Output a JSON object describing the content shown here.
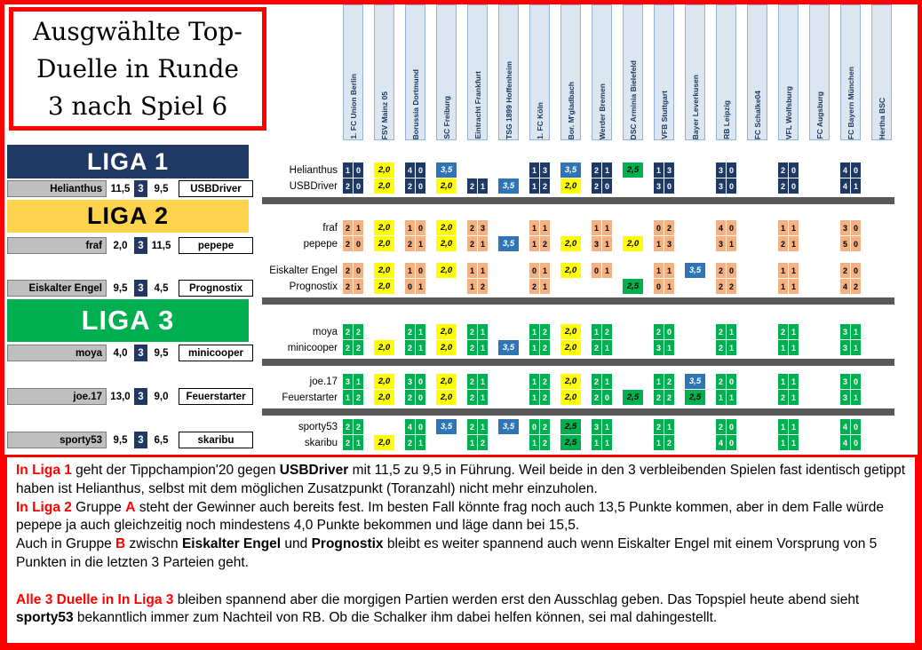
{
  "title": "Ausgwählte Top-\nDuelle in Runde\n3 nach Spiel 6",
  "leagues": {
    "liga1": {
      "label": "LIGA 1",
      "banner_bg": "#1F3864",
      "banner_fg": "#FFFFFF"
    },
    "liga2": {
      "label": "LIGA 2",
      "banner_bg": "#FFD34D",
      "banner_fg": "#000000"
    },
    "liga3": {
      "label": "LIGA 3",
      "banner_bg": "#00B050",
      "banner_fg": "#FFFFFF"
    }
  },
  "league_cell_colors": {
    "1": {
      "bg": "#1F3864",
      "fg": "#FFFFFF"
    },
    "2": {
      "bg": "#F4B183",
      "fg": "#000000"
    },
    "3": {
      "bg": "#00B050",
      "fg": "#FFFFFF"
    }
  },
  "points_colors": {
    "y": {
      "bg": "#FFFF00",
      "fg": "#000000"
    },
    "b": {
      "bg": "#2E75B6",
      "fg": "#FFFFFF"
    },
    "g": {
      "bg": "#00B050",
      "fg": "#000000"
    }
  },
  "teams": [
    "1. FC Union Berlin",
    "FSV Mainz 05",
    "Borussia Dortmund",
    "SC Freiburg",
    "Eintracht Frankfurt",
    "TSG 1899 Hoffenheim",
    "1. FC Köln",
    "Bor. M'gladbach",
    "Werder Bremen",
    "DSC Arminia Bielefeld",
    "VFB Stuttgart",
    "Bayer Leverkusen",
    "RB Leipzig",
    "FC Schalke04",
    "VFL Wolfsburg",
    "FC Augsburg",
    "FC Bayern München",
    "Hertha BSC"
  ],
  "matchups": [
    {
      "home": "Helianthus",
      "home_score": "11,5",
      "round": "3",
      "away_score": "9,5",
      "away": "USBDriver"
    },
    {
      "home": "fraf",
      "home_score": "2,0",
      "round": "3",
      "away_score": "11,5",
      "away": "pepepe"
    },
    {
      "home": "Eiskalter Engel",
      "home_score": "9,5",
      "round": "3",
      "away_score": "4,5",
      "away": "Prognostix"
    },
    {
      "home": "moya",
      "home_score": "4,0",
      "round": "3",
      "away_score": "9,5",
      "away": "minicooper"
    },
    {
      "home": "joe.17",
      "home_score": "13,0",
      "round": "3",
      "away_score": "9,0",
      "away": "Feuerstarter"
    },
    {
      "home": "sporty53",
      "home_score": "9,5",
      "round": "3",
      "away_score": "6,5",
      "away": "skaribu"
    }
  ],
  "grid": {
    "rows": [
      {
        "player": "Helianthus",
        "league": "1",
        "cells": [
          {
            "s": "1:0"
          },
          {
            "p": "2,0",
            "c": "y"
          },
          {
            "s": "4:0"
          },
          {
            "p": "3,5",
            "c": "b"
          },
          null,
          null,
          {
            "s": "1:3"
          },
          {
            "p": "3,5",
            "c": "b"
          },
          {
            "s": "2:1"
          },
          {
            "p": "2,5",
            "c": "g"
          },
          {
            "s": "1:3"
          },
          null,
          {
            "s": "3:0"
          },
          null,
          {
            "s": "2:0"
          },
          null,
          {
            "s": "4:0"
          },
          null
        ]
      },
      {
        "player": "USBDriver",
        "league": "1",
        "cells": [
          {
            "s": "2:0"
          },
          {
            "p": "2,0",
            "c": "y"
          },
          {
            "s": "2:0"
          },
          {
            "p": "2,0",
            "c": "y"
          },
          {
            "s": "2:1"
          },
          {
            "p": "3,5",
            "c": "b"
          },
          {
            "s": "1:2"
          },
          {
            "p": "2,0",
            "c": "y"
          },
          {
            "s": "2:0"
          },
          null,
          {
            "s": "3:0"
          },
          null,
          {
            "s": "3:0"
          },
          null,
          {
            "s": "2:0"
          },
          null,
          {
            "s": "4:1"
          },
          null
        ]
      },
      {
        "player": "fraf",
        "league": "2",
        "cells": [
          {
            "s": "2:1"
          },
          {
            "p": "2,0",
            "c": "y"
          },
          {
            "s": "1:0"
          },
          {
            "p": "2,0",
            "c": "y"
          },
          {
            "s": "2:3"
          },
          null,
          {
            "s": "1:1"
          },
          null,
          {
            "s": "1:1"
          },
          null,
          {
            "s": "0:2"
          },
          null,
          {
            "s": "4:0"
          },
          null,
          {
            "s": "1:1"
          },
          null,
          {
            "s": "3:0"
          },
          null
        ]
      },
      {
        "player": "pepepe",
        "league": "2",
        "cells": [
          {
            "s": "2:0"
          },
          {
            "p": "2,0",
            "c": "y"
          },
          {
            "s": "2:1"
          },
          {
            "p": "2,0",
            "c": "y"
          },
          {
            "s": "2:1"
          },
          {
            "p": "3,5",
            "c": "b"
          },
          {
            "s": "1:2"
          },
          {
            "p": "2,0",
            "c": "y"
          },
          {
            "s": "3:1"
          },
          {
            "p": "2,0",
            "c": "y"
          },
          {
            "s": "1:3"
          },
          null,
          {
            "s": "3:1"
          },
          null,
          {
            "s": "2:1"
          },
          null,
          {
            "s": "5:0"
          },
          null
        ]
      },
      {
        "player": "Eiskalter Engel",
        "league": "2",
        "cells": [
          {
            "s": "2:0"
          },
          {
            "p": "2,0",
            "c": "y"
          },
          {
            "s": "1:0"
          },
          {
            "p": "2,0",
            "c": "y"
          },
          {
            "s": "1:1"
          },
          null,
          {
            "s": "0:1"
          },
          {
            "p": "2,0",
            "c": "y"
          },
          {
            "s": "0:1"
          },
          null,
          {
            "s": "1:1"
          },
          {
            "p": "3,5",
            "c": "b"
          },
          {
            "s": "2:0"
          },
          null,
          {
            "s": "1:1"
          },
          null,
          {
            "s": "2:0"
          },
          null
        ]
      },
      {
        "player": "Prognostix",
        "league": "2",
        "cells": [
          {
            "s": "2:1"
          },
          {
            "p": "2,0",
            "c": "y"
          },
          {
            "s": "0:1"
          },
          null,
          {
            "s": "1:2"
          },
          null,
          {
            "s": "2:1"
          },
          null,
          null,
          {
            "p": "2,5",
            "c": "g"
          },
          {
            "s": "0:1"
          },
          null,
          {
            "s": "2:2"
          },
          null,
          {
            "s": "1:1"
          },
          null,
          {
            "s": "4:2"
          },
          null
        ]
      },
      {
        "player": "moya",
        "league": "3",
        "cells": [
          {
            "s": "2:2"
          },
          null,
          {
            "s": "2:1"
          },
          {
            "p": "2,0",
            "c": "y"
          },
          {
            "s": "2:1"
          },
          null,
          {
            "s": "1:2"
          },
          {
            "p": "2,0",
            "c": "y"
          },
          {
            "s": "1:2"
          },
          null,
          {
            "s": "2:0"
          },
          null,
          {
            "s": "2:1"
          },
          null,
          {
            "s": "2:1"
          },
          null,
          {
            "s": "3:1"
          },
          null
        ]
      },
      {
        "player": "minicooper",
        "league": "3",
        "cells": [
          {
            "s": "2:2"
          },
          {
            "p": "2,0",
            "c": "y"
          },
          {
            "s": "2:1"
          },
          {
            "p": "2,0",
            "c": "y"
          },
          {
            "s": "2:1"
          },
          {
            "p": "3,5",
            "c": "b"
          },
          {
            "s": "1:2"
          },
          {
            "p": "2,0",
            "c": "y"
          },
          {
            "s": "2:1"
          },
          null,
          {
            "s": "3:1"
          },
          null,
          {
            "s": "2:1"
          },
          null,
          {
            "s": "1:1"
          },
          null,
          {
            "s": "3:1"
          },
          null
        ]
      },
      {
        "player": "joe.17",
        "league": "3",
        "cells": [
          {
            "s": "3:1"
          },
          {
            "p": "2,0",
            "c": "y"
          },
          {
            "s": "3:0"
          },
          {
            "p": "2,0",
            "c": "y"
          },
          {
            "s": "2:1"
          },
          null,
          {
            "s": "1:2"
          },
          {
            "p": "2,0",
            "c": "y"
          },
          {
            "s": "2:1"
          },
          null,
          {
            "s": "1:2"
          },
          {
            "p": "3,5",
            "c": "b"
          },
          {
            "s": "2:0"
          },
          null,
          {
            "s": "1:1"
          },
          null,
          {
            "s": "3:0"
          },
          null
        ]
      },
      {
        "player": "Feuerstarter",
        "league": "3",
        "cells": [
          {
            "s": "1:2"
          },
          {
            "p": "2,0",
            "c": "y"
          },
          {
            "s": "2:0"
          },
          {
            "p": "2,0",
            "c": "y"
          },
          {
            "s": "2:1"
          },
          null,
          {
            "s": "1:2"
          },
          {
            "p": "2,0",
            "c": "y"
          },
          {
            "s": "2:0"
          },
          {
            "p": "2,5",
            "c": "g"
          },
          {
            "s": "2:2"
          },
          {
            "p": "2,5",
            "c": "g"
          },
          {
            "s": "1:1"
          },
          null,
          {
            "s": "2:1"
          },
          null,
          {
            "s": "3:1"
          },
          null
        ]
      },
      {
        "player": "sporty53",
        "league": "3",
        "cells": [
          {
            "s": "2:2"
          },
          null,
          {
            "s": "4:0"
          },
          {
            "p": "3,5",
            "c": "b"
          },
          {
            "s": "2:1"
          },
          {
            "p": "3,5",
            "c": "b"
          },
          {
            "s": "0:2"
          },
          {
            "p": "2,5",
            "c": "g"
          },
          {
            "s": "3:1"
          },
          null,
          {
            "s": "2:1"
          },
          null,
          {
            "s": "2:0"
          },
          null,
          {
            "s": "1:1"
          },
          null,
          {
            "s": "4:0"
          },
          null
        ]
      },
      {
        "player": "skaribu",
        "league": "3",
        "cells": [
          {
            "s": "2:1"
          },
          {
            "p": "2,0",
            "c": "y"
          },
          {
            "s": "2:1"
          },
          null,
          {
            "s": "1:2"
          },
          null,
          {
            "s": "1:2"
          },
          {
            "p": "2,5",
            "c": "g"
          },
          {
            "s": "1:1"
          },
          null,
          {
            "s": "1:2"
          },
          null,
          {
            "s": "4:0"
          },
          null,
          {
            "s": "1:1"
          },
          null,
          {
            "s": "4:0"
          },
          null
        ]
      }
    ]
  },
  "commentary": {
    "paragraphs": [
      {
        "gap_before": false,
        "segments": [
          {
            "text": "In Liga 1",
            "bold": true,
            "red": true
          },
          {
            "text": " geht der Tippchampion'20 gegen ",
            "bold": false,
            "red": false
          },
          {
            "text": "USBDriver",
            "bold": true,
            "red": false
          },
          {
            "text": " mit 11,5 zu 9,5 in Führung. Weil beide in den 3 verbleibenden Spielen fast identisch getippt haben ist Helianthus, selbst mit dem möglichen Zusatzpunkt (Toranzahl) nicht mehr einzuholen.",
            "bold": false,
            "red": false
          }
        ]
      },
      {
        "gap_before": false,
        "segments": [
          {
            "text": "In Liga 2",
            "bold": true,
            "red": true
          },
          {
            "text": " Gruppe ",
            "bold": false,
            "red": false
          },
          {
            "text": "A",
            "bold": true,
            "red": true
          },
          {
            "text": " steht der Gewinner auch bereits fest.  Im  besten Fall könnte frag noch auch 13,5  Punkte kommen, aber in dem Falle würde pepepe ja auch gleichzeitig noch mindestens 4,0 Punkte bekommen und läge dann bei 15,5.",
            "bold": false,
            "red": false
          }
        ]
      },
      {
        "gap_before": false,
        "segments": [
          {
            "text": "Auch in Gruppe ",
            "bold": false,
            "red": false
          },
          {
            "text": "B",
            "bold": true,
            "red": true
          },
          {
            "text": " zwischn ",
            "bold": false,
            "red": false
          },
          {
            "text": "Eiskalter Engel",
            "bold": true,
            "red": false
          },
          {
            "text": " und ",
            "bold": false,
            "red": false
          },
          {
            "text": "Prognostix",
            "bold": true,
            "red": false
          },
          {
            "text": " bleibt es weiter spannend auch wenn Eiskalter Engel mit einem Vorsprung von 5 Punkten in die letzten  3 Parteien geht.",
            "bold": false,
            "red": false
          }
        ]
      },
      {
        "gap_before": true,
        "segments": [
          {
            "text": "Alle 3 Duelle in In Liga 3",
            "bold": true,
            "red": true
          },
          {
            "text": " bleiben spannend aber die morgigen Partien werden erst den Ausschlag geben. Das Topspiel heute abend sieht ",
            "bold": false,
            "red": false
          },
          {
            "text": "sporty53",
            "bold": true,
            "red": false
          },
          {
            "text": " bekanntlich immer zum Nachteil von RB.  Ob die Schalker ihm dabei helfen können, sei mal dahingestellt.",
            "bold": false,
            "red": false
          }
        ]
      }
    ]
  }
}
